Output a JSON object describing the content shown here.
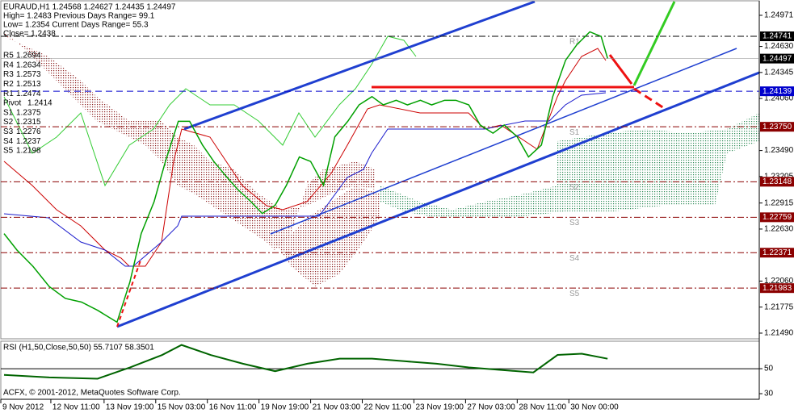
{
  "chart_data": [
    {
      "type": "line",
      "title": "EURAUD,H1 1.24568 1.24627 1.24435 1.24497",
      "info": [
        "High= 1.2483   Previous Days Range= 99.1",
        "Low= 1.2354   Current Days Range= 55.3",
        "Close= 1.2438"
      ],
      "pivots": [
        {
          "name": "R5",
          "value": 1.2694
        },
        {
          "name": "R4",
          "value": 1.2634
        },
        {
          "name": "R3",
          "value": 1.2573
        },
        {
          "name": "R2",
          "value": 1.2513
        },
        {
          "name": "R1",
          "value": 1.2474
        },
        {
          "name": "Pivot",
          "value": 1.2414
        },
        {
          "name": "S1",
          "value": 1.2375
        },
        {
          "name": "S2",
          "value": 1.2315
        },
        {
          "name": "S3",
          "value": 1.2276
        },
        {
          "name": "S4",
          "value": 1.2237
        },
        {
          "name": "S5",
          "value": 1.2198
        }
      ],
      "levels": [
        {
          "name": "R1",
          "value": 1.24741,
          "color": "#000000"
        },
        {
          "name": null,
          "value": 1.24139,
          "color": "#0000cc"
        },
        {
          "name": "S1",
          "value": {
            "value": 1.2375,
            "label": "1.23750"
          },
          "color": "#8b0000"
        },
        {
          "name": "S2",
          "value": 1.23148,
          "color": "#8b0000"
        },
        {
          "name": "S3",
          "value": 1.22759,
          "color": "#8b0000"
        },
        {
          "name": "S4",
          "value": 1.22371,
          "color": "#8b0000"
        },
        {
          "name": "S5",
          "value": 1.21983,
          "color": "#8b0000"
        }
      ],
      "current_price": 1.24497,
      "annotation": "ACFX, © 2001-2012, MetaQuotes Software Corp.",
      "series": [
        {
          "name": "EURAUD",
          "color": "#00a000",
          "x": [
            2,
            10,
            20,
            30,
            40,
            50,
            60,
            72,
            80,
            87,
            95,
            102,
            110,
            117,
            125,
            132,
            140,
            147,
            155,
            162,
            170,
            177,
            185,
            192,
            200,
            207,
            215,
            222,
            230,
            237,
            245,
            252,
            260,
            267,
            275,
            282,
            290,
            297,
            305,
            312,
            320,
            327,
            335,
            342,
            350,
            357,
            365,
            372,
            376
          ],
          "values": [
            1.2258,
            1.224,
            1.2222,
            1.22,
            1.2187,
            1.2183,
            1.2174,
            1.2161,
            1.2205,
            1.2258,
            1.2293,
            1.2337,
            1.2381,
            1.2381,
            1.2355,
            1.2337,
            1.232,
            1.2306,
            1.2293,
            1.228,
            1.2289,
            1.2311,
            1.2342,
            1.2337,
            1.2311,
            1.2364,
            1.2381,
            1.2399,
            1.2408,
            1.2399,
            1.2404,
            1.2399,
            1.2404,
            1.2399,
            1.2404,
            1.2404,
            1.2399,
            1.2377,
            1.2368,
            1.2377,
            1.2364,
            1.2342,
            1.2355,
            1.2408,
            1.2448,
            1.2465,
            1.2479,
            1.2474,
            1.245
          ]
        }
      ],
      "xlim": [
        0,
        470
      ],
      "xticks": [
        {
          "value": 0,
          "label": "9 Nov 2012"
        },
        {
          "value": 31,
          "label": "12 Nov 11:00"
        },
        {
          "value": 64,
          "label": "13 Nov 19:00"
        },
        {
          "value": 96,
          "label": "15 Nov 03:00"
        },
        {
          "value": 128,
          "label": "16 Nov 11:00"
        },
        {
          "value": 160,
          "label": "19 Nov 19:00"
        },
        {
          "value": 192,
          "label": "21 Nov 03:00"
        },
        {
          "value": 224,
          "label": "22 Nov 11:00"
        },
        {
          "value": 256,
          "label": "23 Nov 19:00"
        },
        {
          "value": 288,
          "label": "27 Nov 03:00"
        },
        {
          "value": 320,
          "label": "28 Nov 11:00"
        },
        {
          "value": 352,
          "label": "30 Nov 00:00"
        }
      ],
      "ylim": [
        1.21428,
        1.25121
      ],
      "yticks": [
        1.24971,
        {
          "value": 1.2463,
          "label": "1.24630"
        },
        1.24345,
        {
          "value": 1.2406,
          "label": "1.24060"
        },
        {
          "value": 1.2349,
          "label": "1.23490"
        },
        1.23205,
        1.22915,
        {
          "value": 1.2263,
          "label": "1.22630"
        },
        {
          "value": 1.2206,
          "label": "1.22060"
        },
        1.21775,
        {
          "value": 1.2149,
          "label": "1.21490"
        }
      ]
    },
    {
      "type": "line",
      "title": "RSI (H1,50,Close,50,50) 55.7107 58.3501",
      "series": [
        {
          "name": "RSI",
          "color": "#006400",
          "x": [
            2,
            30,
            60,
            80,
            100,
            112,
            130,
            150,
            170,
            190,
            210,
            230,
            250,
            270,
            290,
            310,
            330,
            345,
            360,
            376
          ],
          "values": [
            45,
            43,
            42,
            51,
            61,
            69,
            61,
            54,
            48,
            54,
            58,
            58,
            56,
            54,
            51,
            49,
            47,
            61,
            62,
            58
          ]
        }
      ],
      "xlim": [
        0,
        470
      ],
      "ylim": [
        25.5,
        72
      ],
      "yticks": [
        50,
        30
      ]
    }
  ]
}
